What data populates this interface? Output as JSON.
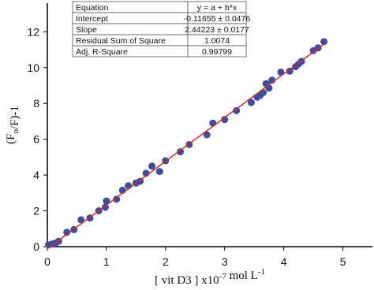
{
  "chart_data": {
    "type": "scatter",
    "x_label": [
      {
        "text": "[ vit D3 ] x10",
        "shift": "normal"
      },
      {
        "text": "-7",
        "shift": "super"
      },
      {
        "text": " mol L",
        "shift": "normal"
      },
      {
        "text": "-1",
        "shift": "super"
      }
    ],
    "y_label": [
      {
        "text": "(F",
        "shift": "normal"
      },
      {
        "text": "o",
        "shift": "sub"
      },
      {
        "text": "/F)-1",
        "shift": "normal"
      }
    ],
    "xlim": [
      0,
      5.5
    ],
    "xticks": [
      0,
      1,
      2,
      3,
      4,
      5
    ],
    "ylim": [
      0,
      13.6
    ],
    "yticks": [
      0,
      2,
      4,
      6,
      8,
      10,
      12
    ],
    "series": [
      {
        "color": "#3a4d9e",
        "x": [
          0.02,
          0.08,
          0.14,
          0.19,
          0.33,
          0.45,
          0.57,
          0.72,
          0.87,
          0.98,
          1.0,
          1.17,
          1.27,
          1.37,
          1.5,
          1.57,
          1.67,
          1.77,
          1.9,
          2.0,
          2.25,
          2.4,
          2.7,
          2.8,
          3.0,
          3.2,
          3.45,
          3.55,
          3.6,
          3.65,
          3.7,
          3.75,
          3.8,
          3.95,
          4.1,
          4.2,
          4.25,
          4.3,
          4.5,
          4.58,
          4.68
        ],
        "values": [
          0.1,
          0.15,
          0.2,
          0.3,
          0.8,
          0.95,
          1.5,
          1.6,
          2.0,
          2.2,
          2.55,
          2.65,
          3.15,
          3.4,
          3.55,
          3.65,
          4.1,
          4.5,
          4.2,
          4.8,
          5.3,
          5.7,
          6.25,
          6.9,
          7.1,
          7.6,
          8.05,
          8.35,
          8.45,
          8.6,
          9.1,
          8.85,
          9.3,
          9.75,
          9.8,
          10.05,
          10.2,
          10.35,
          10.95,
          11.1,
          11.45
        ]
      }
    ],
    "fit": {
      "intercept": -0.11655,
      "slope": 2.44223,
      "color": "#d42a2a"
    },
    "table": {
      "rows": [
        [
          "Equation",
          "y = a + b*x"
        ],
        [
          "Intercept",
          "-0.11655 ± 0.0476"
        ],
        [
          "Slope",
          "2.44223 ± 0.0177"
        ],
        [
          "Residual Sum of Square",
          "1.0074"
        ],
        [
          "Adj. R-Square",
          "0.99799"
        ]
      ]
    }
  }
}
